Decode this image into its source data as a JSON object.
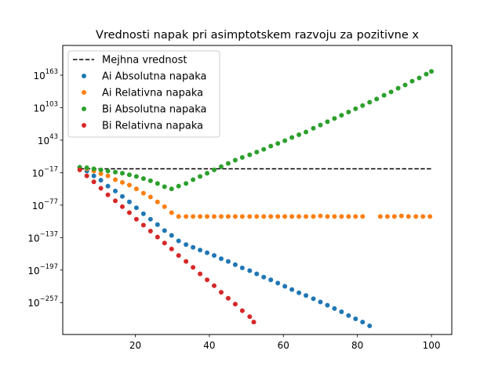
{
  "chart_data": {
    "type": "scatter",
    "title": "Vrednosti napak pri asimptotskem razvoju za pozitivne x",
    "xlabel": "",
    "ylabel": "",
    "y_scale": "log10",
    "xlim": [
      0.4,
      105.5
    ],
    "ylim_log10": [
      -316,
      218
    ],
    "x_ticks": [
      20,
      40,
      60,
      80,
      100
    ],
    "x_tick_labels": [
      "20",
      "40",
      "60",
      "80",
      "100"
    ],
    "y_ticks_log10": [
      163,
      103,
      43,
      -17,
      -77,
      -137,
      -197,
      -257
    ],
    "y_tick_labels": [
      {
        "base": "10",
        "exp": "163"
      },
      {
        "base": "10",
        "exp": "103"
      },
      {
        "base": "10",
        "exp": "43"
      },
      {
        "base": "10",
        "exp": "−17"
      },
      {
        "base": "10",
        "exp": "−77"
      },
      {
        "base": "10",
        "exp": "−137"
      },
      {
        "base": "10",
        "exp": "−197"
      },
      {
        "base": "10",
        "exp": "−257"
      }
    ],
    "grid": false,
    "legend_position": "top-left",
    "threshold": {
      "name": "Mejhna vrednost",
      "x": [
        5,
        100
      ],
      "log10_y": [
        -10,
        -10
      ],
      "color": "#000000",
      "style": "dashed"
    },
    "series": [
      {
        "name": "Ai Absolutna napaka",
        "color": "#1f77b4",
        "x": [
          5.0,
          6.9,
          8.8,
          10.7,
          12.6,
          14.6,
          16.5,
          18.4,
          20.3,
          22.2,
          24.1,
          26.0,
          27.9,
          29.8,
          31.7,
          33.7,
          35.6,
          37.5,
          39.4,
          41.3,
          43.2,
          45.1,
          47.0,
          48.9,
          50.9,
          52.8,
          54.7,
          56.6,
          58.5,
          60.4,
          62.3,
          64.2,
          66.1,
          68.1,
          70.0,
          71.9,
          73.8,
          75.7,
          77.6,
          79.5,
          81.4,
          83.3
        ],
        "log10_y": [
          -8,
          -14,
          -23,
          -31,
          -42,
          -51,
          -61,
          -71,
          -82,
          -93,
          -103,
          -113,
          -124,
          -133,
          -143,
          -150,
          -155,
          -160,
          -165,
          -170,
          -176,
          -181,
          -187,
          -193,
          -198,
          -204,
          -210,
          -215,
          -221,
          -227,
          -233,
          -239,
          -244,
          -250,
          -256,
          -262,
          -268,
          -274,
          -281,
          -287,
          -293,
          -300
        ]
      },
      {
        "name": "Ai Relativna napaka",
        "color": "#ff7f0e",
        "x": [
          5.0,
          6.9,
          8.8,
          10.7,
          12.6,
          14.6,
          16.5,
          18.4,
          20.3,
          22.2,
          24.1,
          26.0,
          27.9,
          29.8,
          31.7,
          33.7,
          35.6,
          37.5,
          39.4,
          41.3,
          43.2,
          45.1,
          47.0,
          48.9,
          50.9,
          52.8,
          54.7,
          56.6,
          58.5,
          60.4,
          62.3,
          64.2,
          66.1,
          68.1,
          70.0,
          71.9,
          73.8,
          75.7,
          77.6,
          79.5,
          81.4,
          86.2,
          88.1,
          90.0,
          91.9,
          93.8,
          95.8,
          97.7,
          99.6
        ],
        "log10_y": [
          -8,
          -10,
          -14,
          -19,
          -23,
          -30,
          -35,
          -40,
          -47,
          -55,
          -62,
          -71,
          -80,
          -91,
          -98,
          -98,
          -98,
          -98,
          -98,
          -98,
          -98,
          -98,
          -98,
          -98,
          -98,
          -98,
          -98,
          -98,
          -98,
          -98,
          -98,
          -98,
          -98,
          -98,
          -97,
          -98,
          -98,
          -98,
          -98,
          -98,
          -98,
          -98,
          -98,
          -98,
          -97,
          -98,
          -98,
          -98,
          -98
        ]
      },
      {
        "name": "Bi Absolutna napaka",
        "color": "#2ca02c",
        "x": [
          5.0,
          6.9,
          8.8,
          10.7,
          12.6,
          14.6,
          16.5,
          18.4,
          20.3,
          22.2,
          24.1,
          26.0,
          27.9,
          29.8,
          31.7,
          33.7,
          35.6,
          37.5,
          39.4,
          41.3,
          43.2,
          45.1,
          47.0,
          48.9,
          50.9,
          52.8,
          54.7,
          56.6,
          58.5,
          60.4,
          62.3,
          64.2,
          66.1,
          68.1,
          70.0,
          71.9,
          73.8,
          75.7,
          77.6,
          79.5,
          81.4,
          83.3,
          85.2,
          87.2,
          89.1,
          91.0,
          92.9,
          94.8,
          96.7,
          98.6,
          100.0
        ],
        "log10_y": [
          -7,
          -8,
          -10,
          -12,
          -14,
          -16,
          -18,
          -21,
          -24,
          -28,
          -32,
          -37,
          -43,
          -47,
          -42,
          -37,
          -30,
          -24,
          -18,
          -12,
          -6,
          0,
          6,
          11,
          16,
          21,
          26,
          32,
          37,
          42,
          48,
          53,
          58,
          65,
          71,
          77,
          83,
          89,
          95,
          101,
          107,
          113,
          119,
          126,
          132,
          139,
          145,
          152,
          158,
          165,
          170
        ]
      },
      {
        "name": "Bi Relativna napaka",
        "color": "#d62728",
        "x": [
          5.0,
          6.9,
          8.8,
          10.7,
          12.6,
          14.6,
          16.5,
          18.4,
          20.3,
          22.2,
          24.1,
          26.0,
          27.9,
          29.8,
          31.7,
          33.7,
          35.6,
          37.5,
          39.4,
          41.3,
          43.2,
          45.1,
          47.0,
          48.9,
          50.9,
          52.0
        ],
        "log10_y": [
          -12,
          -23,
          -34,
          -46,
          -58,
          -69,
          -80,
          -91,
          -103,
          -114,
          -125,
          -136,
          -147,
          -158,
          -170,
          -181,
          -192,
          -204,
          -215,
          -226,
          -238,
          -249,
          -260,
          -272,
          -283,
          -293
        ]
      }
    ]
  }
}
